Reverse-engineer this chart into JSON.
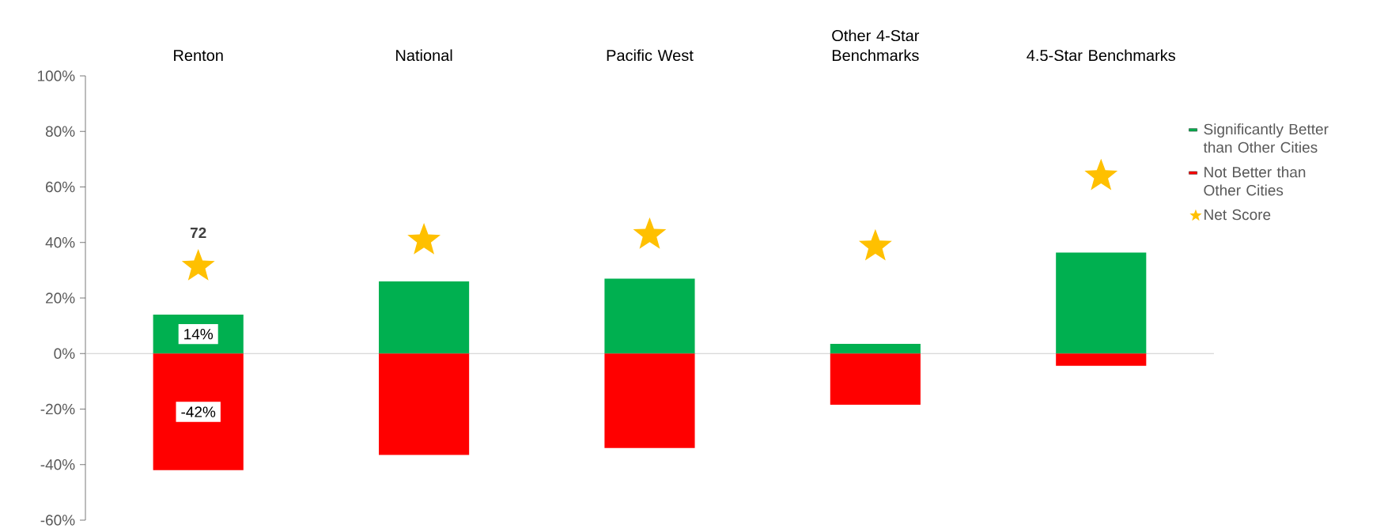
{
  "chart_data": {
    "type": "bar",
    "categories": [
      "Renton",
      "National",
      "Pacific West",
      "Other 4-Star Benchmarks",
      "4.5-Star Benchmarks"
    ],
    "stacked": true,
    "series": [
      {
        "name": "Significantly Better than Other Cities",
        "color": "#00b050",
        "values": [
          14,
          26,
          27,
          3.5,
          36.4
        ],
        "value_labels": [
          "14%",
          null,
          null,
          null,
          null
        ]
      },
      {
        "name": "Not Better than Other Cities",
        "color": "#ff0000",
        "values": [
          -42,
          -36.5,
          -34,
          -18.4,
          -4.4
        ],
        "value_labels": [
          "-42%",
          null,
          null,
          null,
          null
        ]
      },
      {
        "name": "Net Score",
        "type": "scatter",
        "marker": "star",
        "color": "#ffc000",
        "values": [
          31.4,
          40.8,
          42.8,
          38.6,
          63.9
        ]
      }
    ],
    "ylim": [
      -60,
      100
    ],
    "yticks": [
      {
        "value": -60,
        "label": "-60%"
      },
      {
        "value": -40,
        "label": "-40%"
      },
      {
        "value": -20,
        "label": "-20%"
      },
      {
        "value": 0,
        "label": "0%"
      },
      {
        "value": 20,
        "label": "20%"
      },
      {
        "value": 40,
        "label": "40%"
      },
      {
        "value": 60,
        "label": "60%"
      },
      {
        "value": 80,
        "label": "80%"
      },
      {
        "value": 100,
        "label": "100%"
      }
    ],
    "legend": "right",
    "annotations": [
      "72"
    ]
  }
}
